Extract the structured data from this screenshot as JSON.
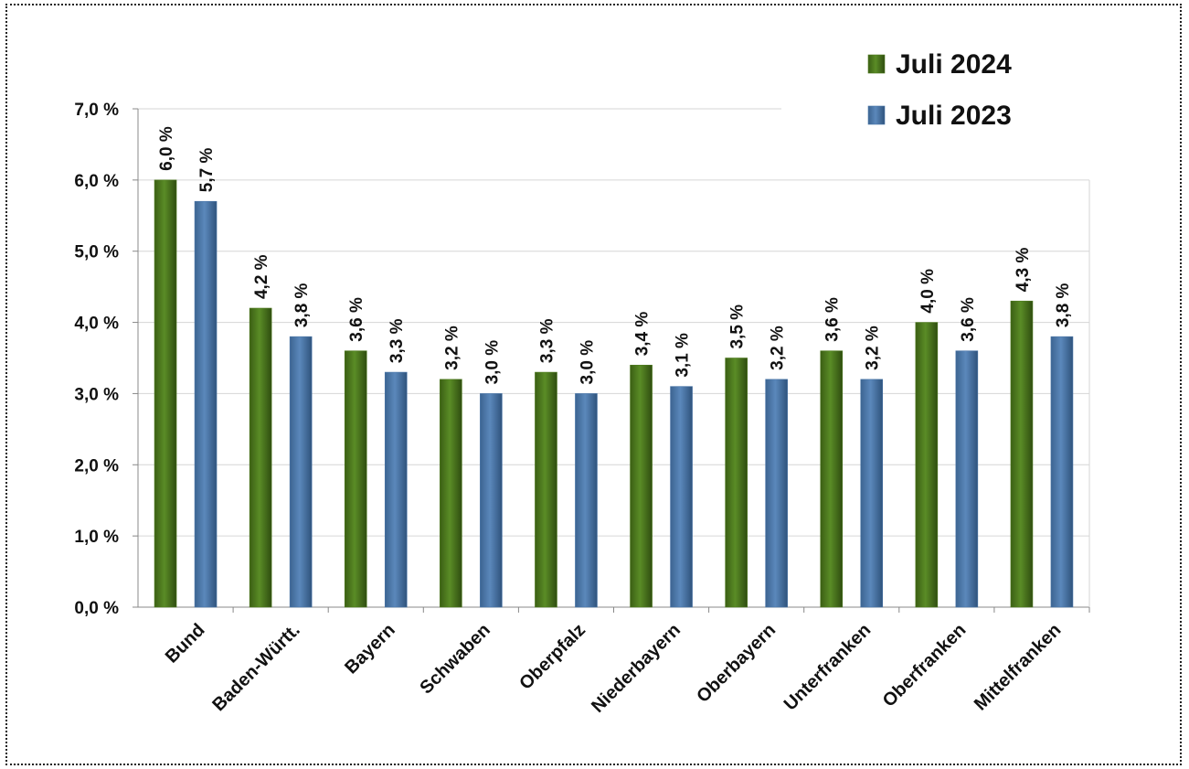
{
  "chart_data": {
    "type": "bar",
    "categories": [
      "Bund",
      "Baden-Württ.",
      "Bayern",
      "Schwaben",
      "Oberpfalz",
      "Niederbayern",
      "Oberbayern",
      "Unterfranken",
      "Oberfranken",
      "Mittelfranken"
    ],
    "series": [
      {
        "name": "Juli 2024",
        "color": "#4e7a1f",
        "values": [
          6.0,
          4.2,
          3.6,
          3.2,
          3.3,
          3.4,
          3.5,
          3.6,
          4.0,
          4.3
        ],
        "labels": [
          "6,0 %",
          "4,2 %",
          "3,6 %",
          "3,2 %",
          "3,3 %",
          "3,4 %",
          "3,5 %",
          "3,6 %",
          "4,0 %",
          "4,3 %"
        ]
      },
      {
        "name": "Juli 2023",
        "color": "#4a76a8",
        "values": [
          5.7,
          3.8,
          3.3,
          3.0,
          3.0,
          3.1,
          3.2,
          3.2,
          3.6,
          3.8
        ],
        "labels": [
          "5,7 %",
          "3,8 %",
          "3,3 %",
          "3,0 %",
          "3,0 %",
          "3,1 %",
          "3,2 %",
          "3,2 %",
          "3,6 %",
          "3,8 %"
        ]
      }
    ],
    "yticks": [
      "0,0 %",
      "1,0 %",
      "2,0 %",
      "3,0 %",
      "4,0 %",
      "5,0 %",
      "6,0 %",
      "7,0 %"
    ],
    "ylim": [
      0,
      7
    ],
    "grid": true,
    "legend_position": "top-right",
    "title": "",
    "xlabel": "",
    "ylabel": ""
  }
}
